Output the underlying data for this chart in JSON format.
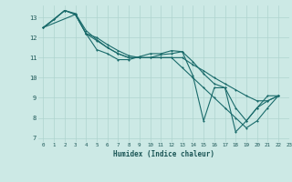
{
  "xlabel": "Humidex (Indice chaleur)",
  "bg_color": "#cce9e5",
  "grid_color": "#afd4cf",
  "line_color": "#1a6b6b",
  "xlim": [
    -0.5,
    23
  ],
  "ylim": [
    6.8,
    13.6
  ],
  "xticks": [
    0,
    1,
    2,
    3,
    4,
    5,
    6,
    7,
    8,
    9,
    10,
    11,
    12,
    13,
    14,
    15,
    16,
    17,
    18,
    19,
    20,
    21,
    22,
    23
  ],
  "yticks": [
    7,
    8,
    9,
    10,
    11,
    12,
    13
  ],
  "series1": [
    [
      0,
      12.5
    ],
    [
      1,
      12.9
    ],
    [
      2,
      13.35
    ],
    [
      3,
      13.15
    ],
    [
      4,
      12.2
    ],
    [
      5,
      11.4
    ],
    [
      6,
      11.2
    ],
    [
      7,
      10.9
    ],
    [
      8,
      10.9
    ],
    [
      9,
      11.05
    ],
    [
      10,
      11.2
    ],
    [
      11,
      11.2
    ],
    [
      12,
      11.35
    ],
    [
      13,
      11.3
    ],
    [
      14,
      10.1
    ],
    [
      15,
      7.85
    ],
    [
      16,
      9.5
    ],
    [
      17,
      9.5
    ],
    [
      18,
      7.3
    ],
    [
      19,
      7.85
    ],
    [
      20,
      8.5
    ],
    [
      21,
      9.1
    ],
    [
      22,
      9.1
    ]
  ],
  "series2": [
    [
      0,
      12.5
    ],
    [
      3,
      13.15
    ],
    [
      4,
      12.2
    ],
    [
      5,
      11.85
    ],
    [
      6,
      11.5
    ],
    [
      7,
      11.2
    ],
    [
      8,
      11.0
    ],
    [
      9,
      11.0
    ],
    [
      10,
      11.0
    ],
    [
      11,
      11.0
    ],
    [
      12,
      11.0
    ],
    [
      13,
      11.0
    ],
    [
      14,
      10.65
    ],
    [
      15,
      10.35
    ],
    [
      16,
      10.0
    ],
    [
      17,
      9.7
    ],
    [
      18,
      9.4
    ],
    [
      19,
      9.1
    ],
    [
      20,
      8.85
    ],
    [
      21,
      8.85
    ],
    [
      22,
      9.1
    ]
  ],
  "series3": [
    [
      0,
      12.5
    ],
    [
      2,
      13.35
    ],
    [
      3,
      13.15
    ],
    [
      4,
      12.2
    ],
    [
      5,
      12.0
    ],
    [
      6,
      11.65
    ],
    [
      7,
      11.35
    ],
    [
      8,
      11.1
    ],
    [
      9,
      11.0
    ],
    [
      10,
      11.0
    ],
    [
      11,
      11.15
    ],
    [
      12,
      11.2
    ],
    [
      13,
      11.3
    ],
    [
      14,
      10.8
    ],
    [
      15,
      10.2
    ],
    [
      16,
      9.7
    ],
    [
      17,
      9.5
    ],
    [
      18,
      8.5
    ],
    [
      19,
      7.85
    ],
    [
      20,
      8.5
    ],
    [
      21,
      8.85
    ],
    [
      22,
      9.1
    ]
  ],
  "series4": [
    [
      0,
      12.5
    ],
    [
      1,
      12.9
    ],
    [
      2,
      13.35
    ],
    [
      3,
      13.2
    ],
    [
      4,
      12.35
    ],
    [
      5,
      11.9
    ],
    [
      6,
      11.5
    ],
    [
      7,
      11.2
    ],
    [
      8,
      11.0
    ],
    [
      9,
      11.0
    ],
    [
      10,
      11.0
    ],
    [
      11,
      11.0
    ],
    [
      12,
      11.0
    ],
    [
      13,
      10.5
    ],
    [
      14,
      10.0
    ],
    [
      15,
      9.5
    ],
    [
      16,
      9.0
    ],
    [
      17,
      8.5
    ],
    [
      18,
      8.0
    ],
    [
      19,
      7.5
    ],
    [
      20,
      7.85
    ],
    [
      21,
      8.5
    ],
    [
      22,
      9.1
    ]
  ]
}
